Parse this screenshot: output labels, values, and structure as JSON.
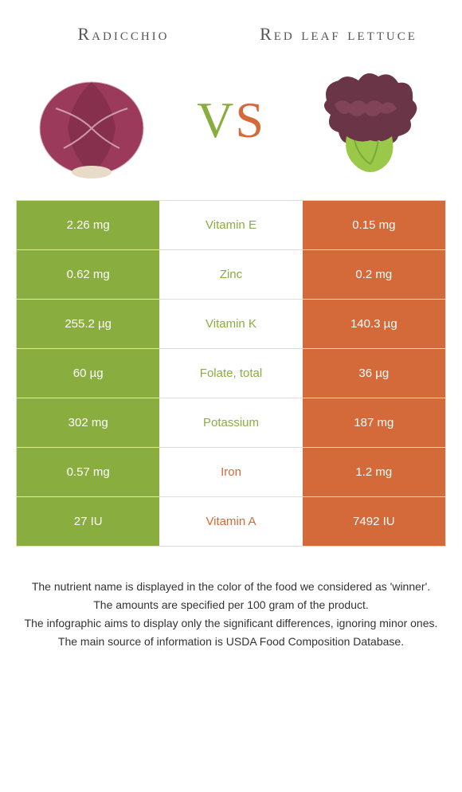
{
  "colors": {
    "left_food": "#8aad3f",
    "right_food": "#d4693a",
    "left_cell_bg": "#8aad3f",
    "right_cell_bg": "#d4693a",
    "mid_bg": "#ffffff",
    "border": "#dddddd"
  },
  "header": {
    "left_title": "Radicchio",
    "right_title": "Red leaf lettuce",
    "vs_v": "V",
    "vs_s": "S"
  },
  "rows": [
    {
      "left": "2.26 mg",
      "nutrient": "Vitamin E",
      "right": "0.15 mg",
      "winner": "left"
    },
    {
      "left": "0.62 mg",
      "nutrient": "Zinc",
      "right": "0.2 mg",
      "winner": "left"
    },
    {
      "left": "255.2 µg",
      "nutrient": "Vitamin K",
      "right": "140.3 µg",
      "winner": "left"
    },
    {
      "left": "60 µg",
      "nutrient": "Folate, total",
      "right": "36 µg",
      "winner": "left"
    },
    {
      "left": "302 mg",
      "nutrient": "Potassium",
      "right": "187 mg",
      "winner": "left"
    },
    {
      "left": "0.57 mg",
      "nutrient": "Iron",
      "right": "1.2 mg",
      "winner": "right"
    },
    {
      "left": "27 IU",
      "nutrient": "Vitamin A",
      "right": "7492 IU",
      "winner": "right"
    }
  ],
  "footnotes": [
    "The nutrient name is displayed in the color of the food we considered as 'winner'.",
    "The amounts are specified per 100 gram of the product.",
    "The infographic aims to display only the significant differences, ignoring minor ones.",
    "The main source of information is USDA Food Composition Database."
  ]
}
